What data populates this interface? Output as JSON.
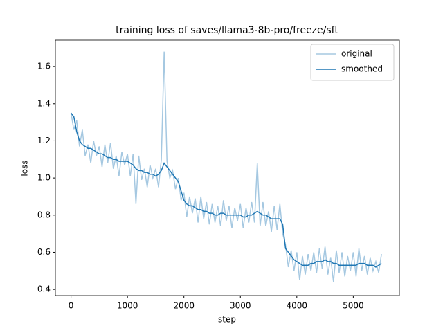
{
  "chart_data": {
    "type": "line",
    "title": "training loss of saves/llama3-8b-pro/freeze/sft",
    "x_label": "step",
    "y_label": "loss",
    "x": [
      0,
      50,
      100,
      150,
      200,
      250,
      300,
      350,
      400,
      450,
      500,
      550,
      600,
      650,
      700,
      750,
      800,
      850,
      900,
      950,
      1000,
      1050,
      1100,
      1150,
      1200,
      1250,
      1300,
      1350,
      1400,
      1450,
      1500,
      1550,
      1600,
      1650,
      1700,
      1750,
      1800,
      1850,
      1900,
      1950,
      2000,
      2050,
      2100,
      2150,
      2200,
      2250,
      2300,
      2350,
      2400,
      2450,
      2500,
      2550,
      2600,
      2650,
      2700,
      2750,
      2800,
      2850,
      2900,
      2950,
      3000,
      3050,
      3100,
      3150,
      3200,
      3250,
      3300,
      3350,
      3400,
      3450,
      3500,
      3550,
      3600,
      3650,
      3700,
      3750,
      3800,
      3850,
      3900,
      3950,
      4000,
      4050,
      4100,
      4150,
      4200,
      4250,
      4300,
      4350,
      4400,
      4450,
      4500,
      4550,
      4600,
      4650,
      4700,
      4750,
      4800,
      4850,
      4900,
      4950,
      5000,
      5050,
      5100,
      5150,
      5200,
      5250,
      5300,
      5350,
      5400,
      5450,
      5500
    ],
    "series": [
      {
        "name": "original",
        "color": "#a5c8e1",
        "values": [
          1.35,
          1.26,
          1.31,
          1.17,
          1.26,
          1.12,
          1.18,
          1.08,
          1.2,
          1.12,
          1.17,
          1.06,
          1.18,
          1.08,
          1.19,
          1.05,
          1.12,
          1.01,
          1.14,
          1.07,
          1.13,
          1.01,
          1.13,
          0.86,
          1.12,
          0.99,
          1.05,
          0.95,
          1.07,
          1.0,
          1.05,
          0.95,
          1.1,
          1.68,
          1.09,
          1.0,
          1.04,
          0.94,
          1.0,
          0.88,
          0.92,
          0.79,
          0.9,
          0.81,
          0.89,
          0.76,
          0.9,
          0.78,
          0.87,
          0.75,
          0.86,
          0.76,
          0.85,
          0.74,
          0.88,
          0.77,
          0.85,
          0.73,
          0.84,
          0.77,
          0.86,
          0.73,
          0.84,
          0.76,
          0.87,
          0.76,
          1.08,
          0.74,
          0.87,
          0.74,
          0.82,
          0.71,
          0.85,
          0.72,
          0.86,
          0.7,
          0.64,
          0.52,
          0.61,
          0.5,
          0.6,
          0.45,
          0.58,
          0.48,
          0.59,
          0.5,
          0.6,
          0.49,
          0.62,
          0.51,
          0.63,
          0.48,
          0.57,
          0.44,
          0.61,
          0.49,
          0.6,
          0.47,
          0.58,
          0.5,
          0.6,
          0.47,
          0.62,
          0.5,
          0.58,
          0.48,
          0.57,
          0.5,
          0.55,
          0.49,
          0.59
        ]
      },
      {
        "name": "smoothed",
        "color": "#1f77b4",
        "values": [
          1.35,
          1.33,
          1.25,
          1.2,
          1.18,
          1.17,
          1.16,
          1.16,
          1.15,
          1.14,
          1.13,
          1.13,
          1.12,
          1.11,
          1.11,
          1.1,
          1.1,
          1.09,
          1.09,
          1.09,
          1.09,
          1.08,
          1.07,
          1.05,
          1.04,
          1.04,
          1.03,
          1.03,
          1.02,
          1.02,
          1.01,
          1.02,
          1.04,
          1.08,
          1.06,
          1.04,
          1.02,
          1.0,
          0.98,
          0.93,
          0.88,
          0.86,
          0.85,
          0.85,
          0.84,
          0.83,
          0.83,
          0.82,
          0.82,
          0.81,
          0.81,
          0.8,
          0.8,
          0.81,
          0.81,
          0.8,
          0.8,
          0.8,
          0.8,
          0.8,
          0.8,
          0.79,
          0.79,
          0.8,
          0.8,
          0.81,
          0.82,
          0.81,
          0.8,
          0.8,
          0.79,
          0.78,
          0.78,
          0.78,
          0.78,
          0.75,
          0.62,
          0.6,
          0.58,
          0.56,
          0.55,
          0.54,
          0.53,
          0.53,
          0.53,
          0.54,
          0.54,
          0.55,
          0.55,
          0.55,
          0.56,
          0.55,
          0.55,
          0.54,
          0.54,
          0.53,
          0.53,
          0.53,
          0.53,
          0.53,
          0.53,
          0.53,
          0.54,
          0.54,
          0.54,
          0.53,
          0.53,
          0.53,
          0.52,
          0.53,
          0.54
        ]
      }
    ],
    "xlim": [
      -277,
      5817
    ],
    "xticks": [
      0,
      1000,
      2000,
      3000,
      4000,
      5000
    ],
    "ylim": [
      0.367,
      1.742
    ],
    "yticks": [
      0.4,
      0.6,
      0.8,
      {
        "value": 1,
        "label": "1.0"
      },
      1.2,
      1.4,
      1.6
    ],
    "legend": "upper right"
  }
}
